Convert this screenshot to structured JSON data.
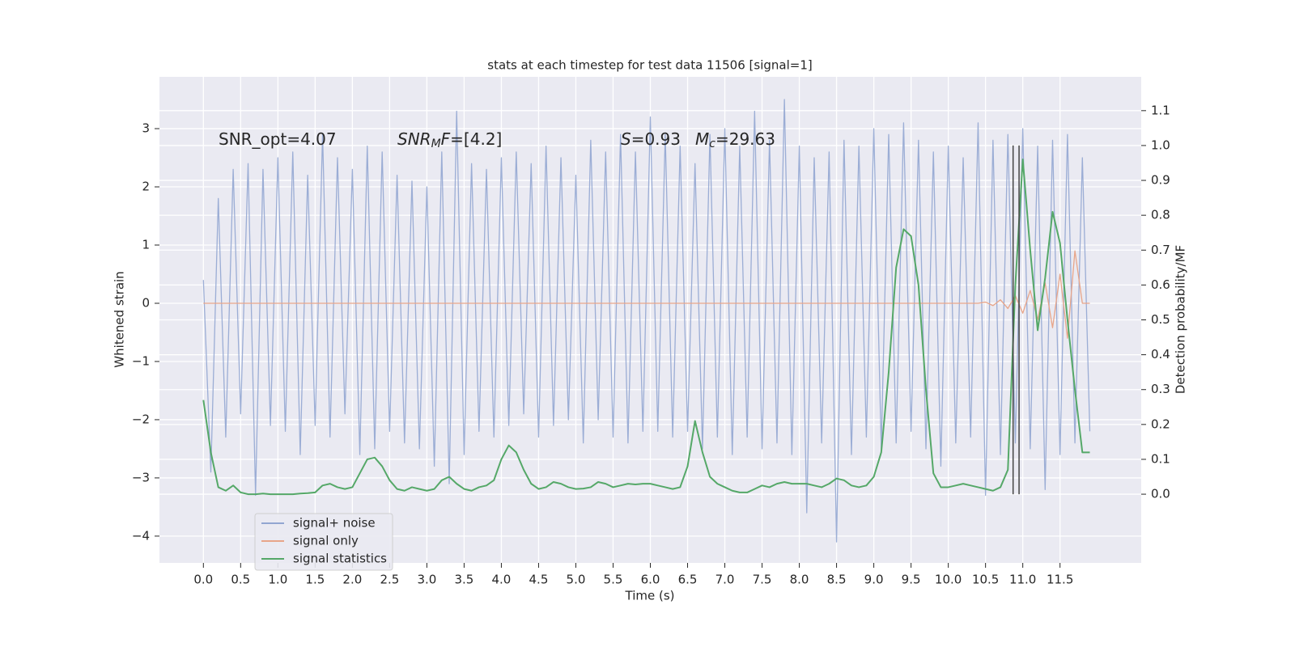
{
  "chart_data": {
    "type": "line",
    "title": "stats at each timestep for test data 11506 [signal=1]",
    "xlabel": "Time (s)",
    "ylabel": "Whitened strain",
    "y2label": "Detection probability/MF",
    "xlim": [
      -0.59,
      12.59
    ],
    "ylim": [
      -4.46,
      3.89
    ],
    "y2lim": [
      -0.197,
      1.197
    ],
    "xticks": [
      {
        "value": 0,
        "label": "0.0"
      },
      {
        "value": 0.5,
        "label": "0.5"
      },
      {
        "value": 1,
        "label": "1.0"
      },
      {
        "value": 1.5,
        "label": "1.5"
      },
      {
        "value": 2,
        "label": "2.0"
      },
      {
        "value": 2.5,
        "label": "2.5"
      },
      {
        "value": 3,
        "label": "3.0"
      },
      {
        "value": 3.5,
        "label": "3.5"
      },
      {
        "value": 4,
        "label": "4.0"
      },
      {
        "value": 4.5,
        "label": "4.5"
      },
      {
        "value": 5,
        "label": "5.0"
      },
      {
        "value": 5.5,
        "label": "5.5"
      },
      {
        "value": 6,
        "label": "6.0"
      },
      {
        "value": 6.5,
        "label": "6.5"
      },
      {
        "value": 7,
        "label": "7.0"
      },
      {
        "value": 7.5,
        "label": "7.5"
      },
      {
        "value": 8,
        "label": "8.0"
      },
      {
        "value": 8.5,
        "label": "8.5"
      },
      {
        "value": 9,
        "label": "9.0"
      },
      {
        "value": 9.5,
        "label": "9.5"
      },
      {
        "value": 10,
        "label": "10.0"
      },
      {
        "value": 10.5,
        "label": "10.5"
      },
      {
        "value": 11,
        "label": "11.0"
      },
      {
        "value": 11.5,
        "label": "11.5"
      }
    ],
    "yticks": [
      {
        "value": -4,
        "label": "−4"
      },
      {
        "value": -3,
        "label": "−3"
      },
      {
        "value": -2,
        "label": "−2"
      },
      {
        "value": -1,
        "label": "−1"
      },
      0,
      1,
      2,
      3
    ],
    "y2ticks": [
      {
        "value": 0,
        "label": "0.0"
      },
      {
        "value": 0.1,
        "label": "0.1"
      },
      {
        "value": 0.2,
        "label": "0.2"
      },
      {
        "value": 0.3,
        "label": "0.3"
      },
      {
        "value": 0.4,
        "label": "0.4"
      },
      {
        "value": 0.5,
        "label": "0.5"
      },
      {
        "value": 0.6,
        "label": "0.6"
      },
      {
        "value": 0.7,
        "label": "0.7"
      },
      {
        "value": 0.8,
        "label": "0.8"
      },
      {
        "value": 0.9,
        "label": "0.9"
      },
      {
        "value": 1,
        "label": "1.0"
      },
      {
        "value": 1.1,
        "label": "1.1"
      }
    ],
    "grid": true,
    "legend": "lower left",
    "x": [
      0,
      0.1,
      0.2,
      0.3,
      0.4,
      0.5,
      0.6,
      0.7,
      0.8,
      0.9,
      1,
      1.1,
      1.2,
      1.3,
      1.4,
      1.5,
      1.6,
      1.7,
      1.8,
      1.9,
      2,
      2.1,
      2.2,
      2.3,
      2.4,
      2.5,
      2.6,
      2.7,
      2.8,
      2.9,
      3,
      3.1,
      3.2,
      3.3,
      3.4,
      3.5,
      3.6,
      3.7,
      3.8,
      3.9,
      4,
      4.1,
      4.2,
      4.3,
      4.4,
      4.5,
      4.6,
      4.7,
      4.8,
      4.9,
      5,
      5.1,
      5.2,
      5.3,
      5.4,
      5.5,
      5.6,
      5.7,
      5.8,
      5.9,
      6,
      6.1,
      6.2,
      6.3,
      6.4,
      6.5,
      6.6,
      6.7,
      6.8,
      6.9,
      7,
      7.1,
      7.2,
      7.3,
      7.4,
      7.5,
      7.6,
      7.7,
      7.8,
      7.9,
      8,
      8.1,
      8.2,
      8.3,
      8.4,
      8.5,
      8.6,
      8.7,
      8.8,
      8.9,
      9,
      9.1,
      9.2,
      9.3,
      9.4,
      9.5,
      9.6,
      9.7,
      9.8,
      9.9,
      10,
      10.1,
      10.2,
      10.3,
      10.4,
      10.5,
      10.6,
      10.7,
      10.8,
      10.9,
      11,
      11.1,
      11.2,
      11.3,
      11.4,
      11.5,
      11.6,
      11.7,
      11.8,
      11.9
    ],
    "series": [
      {
        "name": "signal+ noise",
        "color": "#92a6d1",
        "axis": "y",
        "values": [
          0.4,
          -2.9,
          1.8,
          -2.3,
          2.3,
          -1.9,
          2.4,
          -3.3,
          2.3,
          -2.1,
          2.5,
          -2.2,
          2.6,
          -2.6,
          2.2,
          -2.1,
          2.9,
          -2.3,
          2.5,
          -1.9,
          2.3,
          -2.6,
          2.7,
          -2.5,
          2.6,
          -2.2,
          2.2,
          -2.4,
          2.1,
          -2.5,
          2.0,
          -2.8,
          2.6,
          -3.1,
          3.3,
          -2.6,
          2.4,
          -2.2,
          2.3,
          -2.3,
          2.5,
          -2.1,
          2.6,
          -1.9,
          2.4,
          -2.3,
          2.7,
          -2.1,
          2.5,
          -2.0,
          2.2,
          -2.4,
          2.8,
          -2.0,
          2.6,
          -2.3,
          2.9,
          -2.4,
          2.6,
          -2.2,
          3.2,
          -2.2,
          2.9,
          -2.3,
          2.7,
          -2.2,
          2.4,
          -2.5,
          2.9,
          -2.3,
          3.0,
          -2.6,
          2.7,
          -2.3,
          3.3,
          -2.5,
          2.8,
          -2.4,
          3.5,
          -2.6,
          2.7,
          -3.6,
          2.5,
          -2.4,
          2.6,
          -4.1,
          2.8,
          -2.6,
          2.7,
          -2.3,
          3.0,
          -2.5,
          2.9,
          -2.4,
          3.1,
          -2.2,
          2.8,
          -2.5,
          2.6,
          -2.8,
          2.7,
          -2.4,
          2.5,
          -2.3,
          3.1,
          -3.3,
          2.8,
          -2.6,
          2.9,
          -2.4,
          3.0,
          -2.5,
          2.7,
          -3.2,
          2.8,
          -2.6,
          2.9,
          -2.4,
          2.5,
          -2.2
        ]
      },
      {
        "name": "signal only",
        "color": "#e8a589",
        "axis": "y",
        "values": [
          0,
          0,
          0,
          0,
          0,
          0,
          0,
          0,
          0,
          0,
          0,
          0,
          0,
          0,
          0,
          0,
          0,
          0,
          0,
          0,
          0,
          0,
          0,
          0,
          0,
          0,
          0,
          0,
          0,
          0,
          0,
          0,
          0,
          0,
          0,
          0,
          0,
          0,
          0,
          0,
          0,
          0,
          0,
          0,
          0,
          0,
          0,
          0,
          0,
          0,
          0,
          0,
          0,
          0,
          0,
          0,
          0,
          0,
          0,
          0,
          0,
          0,
          0,
          0,
          0,
          0,
          0,
          0,
          0,
          0,
          0,
          0,
          0,
          0,
          0,
          0,
          0,
          0,
          0,
          0,
          0,
          0,
          0,
          0,
          0,
          0,
          0,
          0,
          0,
          0,
          0,
          0,
          0,
          0,
          0,
          0,
          0,
          0,
          0,
          0,
          0,
          0,
          0,
          0,
          0,
          0.02,
          -0.04,
          0.06,
          -0.09,
          0.13,
          -0.17,
          0.22,
          -0.28,
          0.35,
          -0.42,
          0.5,
          -0.6,
          0.9,
          0,
          0
        ]
      },
      {
        "name": "signal statistics",
        "color": "#55a868",
        "axis": "y2",
        "values": [
          0.27,
          0.12,
          0.02,
          0.01,
          0.025,
          0.005,
          0,
          0,
          0.002,
          0,
          0,
          0,
          0,
          0.002,
          0.003,
          0.005,
          0.025,
          0.03,
          0.02,
          0.015,
          0.02,
          0.06,
          0.1,
          0.105,
          0.08,
          0.04,
          0.015,
          0.01,
          0.02,
          0.015,
          0.01,
          0.015,
          0.04,
          0.05,
          0.03,
          0.015,
          0.01,
          0.02,
          0.025,
          0.04,
          0.1,
          0.14,
          0.12,
          0.07,
          0.03,
          0.015,
          0.02,
          0.035,
          0.03,
          0.02,
          0.015,
          0.016,
          0.02,
          0.035,
          0.03,
          0.02,
          0.025,
          0.03,
          0.028,
          0.03,
          0.03,
          0.025,
          0.02,
          0.015,
          0.02,
          0.08,
          0.21,
          0.12,
          0.05,
          0.03,
          0.02,
          0.01,
          0.005,
          0.005,
          0.015,
          0.025,
          0.02,
          0.03,
          0.035,
          0.03,
          0.03,
          0.03,
          0.025,
          0.02,
          0.03,
          0.045,
          0.04,
          0.025,
          0.02,
          0.025,
          0.05,
          0.12,
          0.35,
          0.65,
          0.76,
          0.74,
          0.6,
          0.3,
          0.06,
          0.02,
          0.02,
          0.025,
          0.03,
          0.025,
          0.02,
          0.015,
          0.01,
          0.02,
          0.07,
          0.6,
          0.96,
          0.7,
          0.47,
          0.62,
          0.81,
          0.72,
          0.5,
          0.3,
          0.12,
          0.12
        ]
      }
    ],
    "vlines": {
      "x": [
        10.87,
        10.95
      ],
      "range": [
        0,
        1
      ],
      "color": "#444444"
    },
    "annotations": [
      {
        "parts": [
          {
            "text": "SNR_opt=4.07"
          }
        ]
      },
      {
        "parts": [
          {
            "text": "SNR",
            "italic": true
          },
          {
            "text": "M",
            "italic": true,
            "sub": true
          },
          {
            "text": "F",
            "italic": true
          },
          {
            "text": "=[4.2]"
          }
        ]
      },
      {
        "parts": [
          {
            "text": "S",
            "italic": true
          },
          {
            "text": "=0.93"
          }
        ]
      },
      {
        "parts": [
          {
            "text": "M",
            "italic": true
          },
          {
            "text": "c",
            "italic": true,
            "sub": true
          },
          {
            "text": "=29.63"
          }
        ]
      }
    ]
  }
}
